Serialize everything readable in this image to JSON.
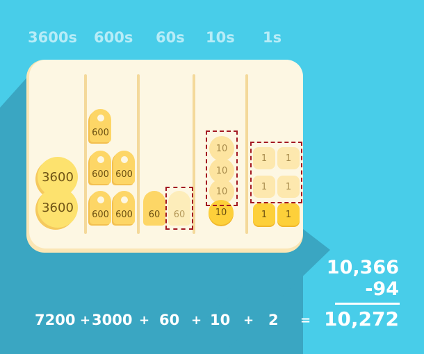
{
  "column_headers": [
    "3600s",
    "600s",
    "60s",
    "10s",
    "1s"
  ],
  "tray": {
    "coins_3600": [
      "3600",
      "3600"
    ],
    "tags_600": [
      "600",
      "600",
      "600",
      "600",
      "600"
    ],
    "tags_60": [
      "60",
      "60"
    ],
    "coins_10": [
      "10",
      "10",
      "10",
      "10"
    ],
    "squares_1": [
      "1",
      "1",
      "1",
      "1",
      "1",
      "1"
    ]
  },
  "subtraction": {
    "minuend": "10,366",
    "subtrahend": "-94"
  },
  "equation": {
    "terms": [
      "7200",
      "3000",
      "60",
      "10",
      "2"
    ],
    "plus": "+",
    "equals": "=",
    "result": "10,272"
  },
  "colors": {
    "background": "#48cde9",
    "shadow": "#3aa6c2",
    "tray": "#fdf7e3",
    "coin": "#fdd666",
    "highlight_box": "#a31822"
  }
}
